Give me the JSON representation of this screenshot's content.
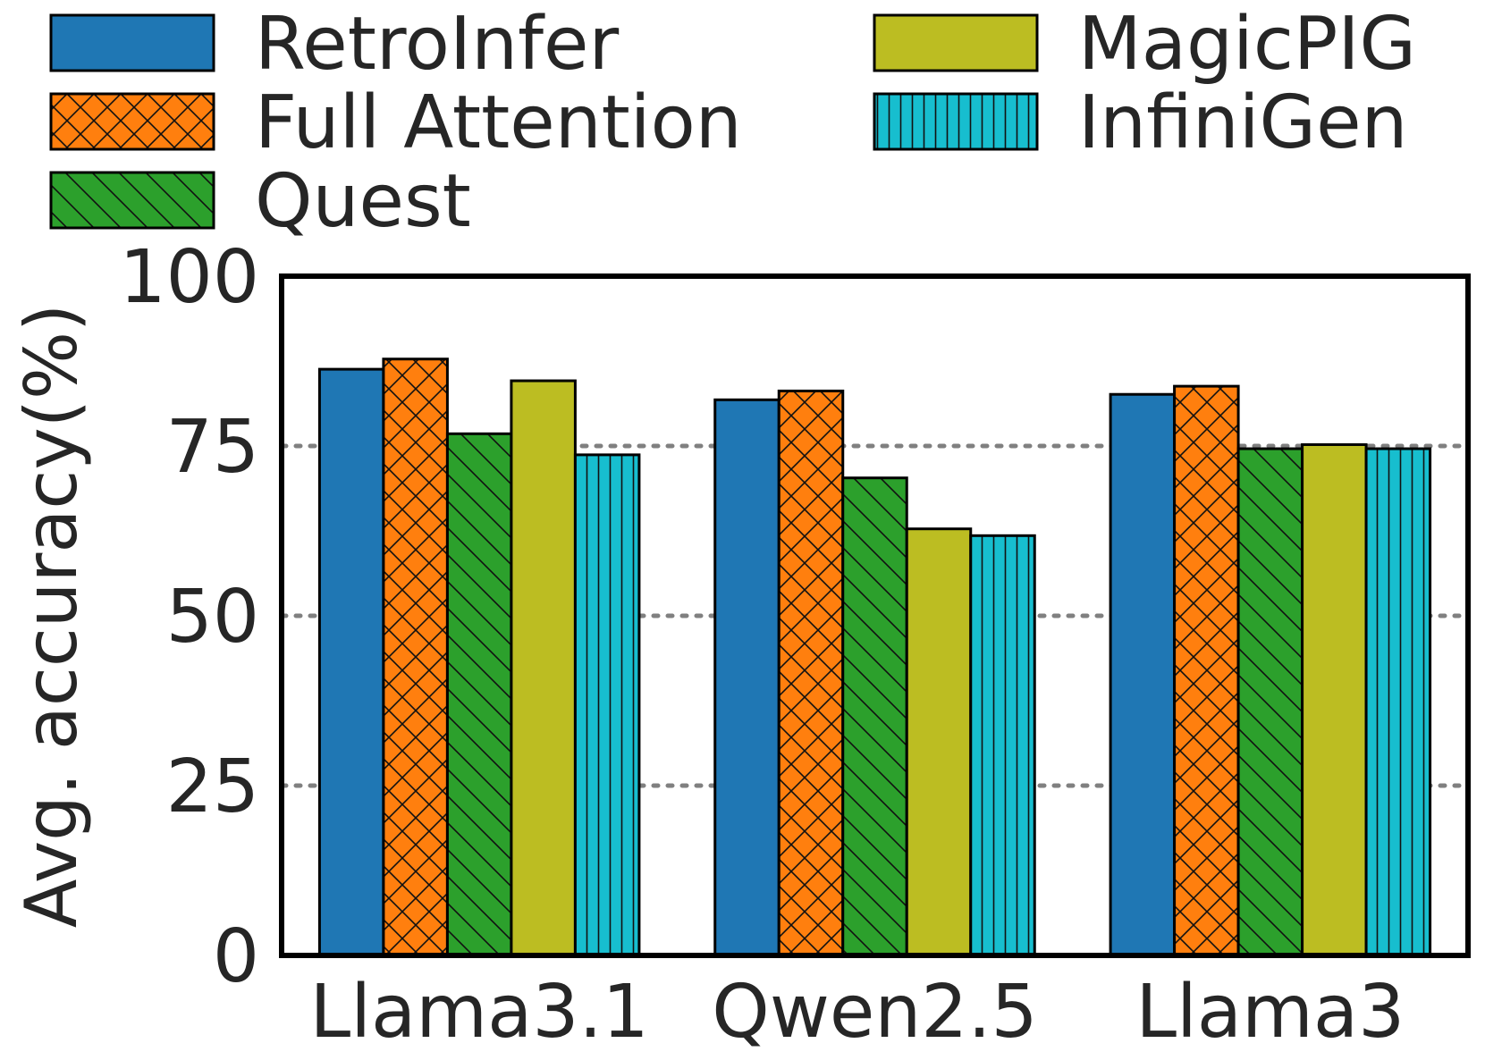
{
  "chart_data": {
    "type": "bar",
    "title": "",
    "xlabel": "",
    "ylabel": "Avg. accuracy(%)",
    "ylim": [
      0,
      100
    ],
    "yticks": [
      0,
      25,
      50,
      75,
      100
    ],
    "grid": "horizontal dotted",
    "legend_position": "top",
    "categories": [
      "Llama3.1",
      "Qwen2.5",
      "Llama3"
    ],
    "series": [
      {
        "name": "RetroInfer",
        "values": [
          86.3,
          81.8,
          82.6
        ],
        "color": "#1f77b4",
        "hatch": "none"
      },
      {
        "name": "Full Attention",
        "values": [
          87.8,
          83.1,
          83.8
        ],
        "color": "#ff7f0e",
        "hatch": "cross"
      },
      {
        "name": "Quest",
        "values": [
          76.8,
          70.3,
          74.6
        ],
        "color": "#2ca02c",
        "hatch": "diagonal"
      },
      {
        "name": "MagicPIG",
        "values": [
          84.6,
          62.8,
          75.2
        ],
        "color": "#bcbd22",
        "hatch": "none"
      },
      {
        "name": "InfiniGen",
        "values": [
          73.7,
          61.8,
          74.6
        ],
        "color": "#17becf",
        "hatch": "vertical"
      }
    ]
  }
}
